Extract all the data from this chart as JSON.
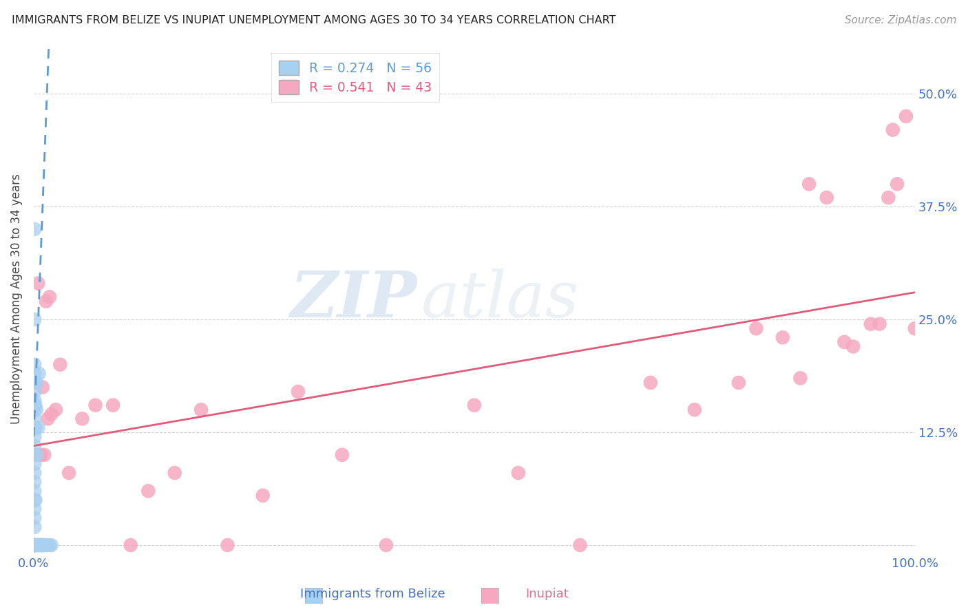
{
  "title": "IMMIGRANTS FROM BELIZE VS INUPIAT UNEMPLOYMENT AMONG AGES 30 TO 34 YEARS CORRELATION CHART",
  "source": "Source: ZipAtlas.com",
  "xlabel_belize": "Immigrants from Belize",
  "xlabel_inupiat": "Inupiat",
  "ylabel": "Unemployment Among Ages 30 to 34 years",
  "r_belize": 0.274,
  "n_belize": 56,
  "r_inupiat": 0.541,
  "n_inupiat": 43,
  "xlim": [
    0.0,
    1.0
  ],
  "ylim": [
    -0.01,
    0.555
  ],
  "xticks": [
    0.0,
    0.25,
    0.5,
    0.75,
    1.0
  ],
  "xticklabels": [
    "0.0%",
    "",
    "",
    "",
    "100.0%"
  ],
  "yticks": [
    0.0,
    0.125,
    0.25,
    0.375,
    0.5
  ],
  "yticklabels": [
    "",
    "12.5%",
    "25.0%",
    "37.5%",
    "50.0%"
  ],
  "color_belize": "#a8d0f0",
  "color_inupiat": "#f5a8c0",
  "line_color_belize": "#5b9bd5",
  "line_color_inupiat": "#e05a7a",
  "background_color": "#ffffff",
  "watermark_zip": "ZIP",
  "watermark_atlas": "atlas",
  "belize_x": [
    0.001,
    0.001,
    0.001,
    0.001,
    0.001,
    0.001,
    0.001,
    0.001,
    0.001,
    0.001,
    0.001,
    0.001,
    0.001,
    0.001,
    0.001,
    0.001,
    0.001,
    0.001,
    0.001,
    0.001,
    0.001,
    0.001,
    0.001,
    0.001,
    0.001,
    0.001,
    0.001,
    0.001,
    0.001,
    0.001,
    0.002,
    0.002,
    0.002,
    0.003,
    0.003,
    0.003,
    0.004,
    0.005,
    0.005,
    0.006,
    0.007,
    0.007,
    0.008,
    0.008,
    0.009,
    0.01,
    0.011,
    0.012,
    0.013,
    0.015,
    0.018,
    0.02,
    0.001,
    0.001,
    0.001,
    0.001
  ],
  "belize_y": [
    0.0,
    0.0,
    0.0,
    0.0,
    0.0,
    0.0,
    0.0,
    0.0,
    0.0,
    0.0,
    0.0,
    0.0,
    0.02,
    0.03,
    0.04,
    0.05,
    0.06,
    0.07,
    0.08,
    0.09,
    0.1,
    0.11,
    0.12,
    0.13,
    0.14,
    0.15,
    0.16,
    0.17,
    0.18,
    0.19,
    0.05,
    0.13,
    0.155,
    0.1,
    0.15,
    0.18,
    0.0,
    0.0,
    0.13,
    0.19,
    0.0,
    0.0,
    0.0,
    0.0,
    0.0,
    0.0,
    0.0,
    0.0,
    0.0,
    0.0,
    0.0,
    0.0,
    0.35,
    0.25,
    0.2,
    0.0
  ],
  "inupiat_x": [
    0.005,
    0.008,
    0.01,
    0.012,
    0.014,
    0.016,
    0.018,
    0.02,
    0.025,
    0.03,
    0.04,
    0.055,
    0.07,
    0.09,
    0.11,
    0.13,
    0.16,
    0.19,
    0.22,
    0.26,
    0.3,
    0.35,
    0.4,
    0.5,
    0.55,
    0.62,
    0.7,
    0.75,
    0.8,
    0.82,
    0.85,
    0.87,
    0.88,
    0.9,
    0.92,
    0.93,
    0.95,
    0.96,
    0.97,
    0.975,
    0.98,
    0.99,
    1.0
  ],
  "inupiat_y": [
    0.29,
    0.1,
    0.175,
    0.1,
    0.27,
    0.14,
    0.275,
    0.145,
    0.15,
    0.2,
    0.08,
    0.14,
    0.155,
    0.155,
    0.0,
    0.06,
    0.08,
    0.15,
    0.0,
    0.055,
    0.17,
    0.1,
    0.0,
    0.155,
    0.08,
    0.0,
    0.18,
    0.15,
    0.18,
    0.24,
    0.23,
    0.185,
    0.4,
    0.385,
    0.225,
    0.22,
    0.245,
    0.245,
    0.385,
    0.46,
    0.4,
    0.475,
    0.24
  ]
}
